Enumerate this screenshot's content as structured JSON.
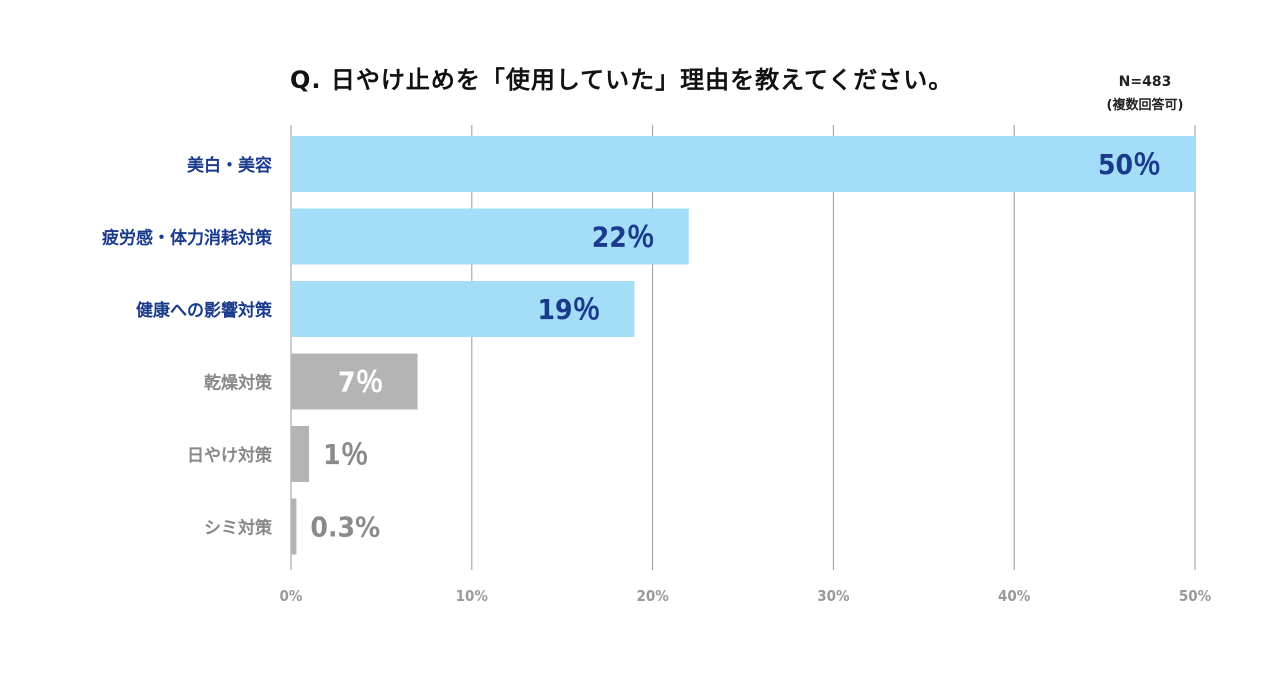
{
  "title": "Q. 日やけ止めを「使用していた」理由を教えてください。",
  "sample_size": "N=483",
  "sample_note": "(複数回答可)",
  "colors": {
    "highlight_bar": "#a3ddf8",
    "highlight_text": "#1a3a8c",
    "muted_bar": "#b4b4b4",
    "muted_text": "#888888",
    "muted_value_outside": "#8a8a8a",
    "grid": "#999999"
  },
  "chart_data": {
    "type": "bar",
    "orientation": "horizontal",
    "title": "Q. 日やけ止めを「使用していた」理由を教えてください。",
    "categories": [
      "美白・美容",
      "疲労感・体力消耗対策",
      "健康への影響対策",
      "乾燥対策",
      "日やけ対策",
      "シミ対策"
    ],
    "values": [
      50,
      22,
      19,
      7,
      1,
      0.3
    ],
    "value_labels": [
      "50％",
      "22％",
      "19％",
      "7％",
      "1％",
      "0.3%"
    ],
    "highlighted": [
      true,
      true,
      true,
      false,
      false,
      false
    ],
    "xlim": [
      0,
      50
    ],
    "xticks": [
      0,
      10,
      20,
      30,
      40,
      50
    ],
    "xtick_labels": [
      "0%",
      "10%",
      "20%",
      "30%",
      "40%",
      "50%"
    ],
    "xlabel": "",
    "ylabel": "",
    "grid": true,
    "legend": "none"
  }
}
